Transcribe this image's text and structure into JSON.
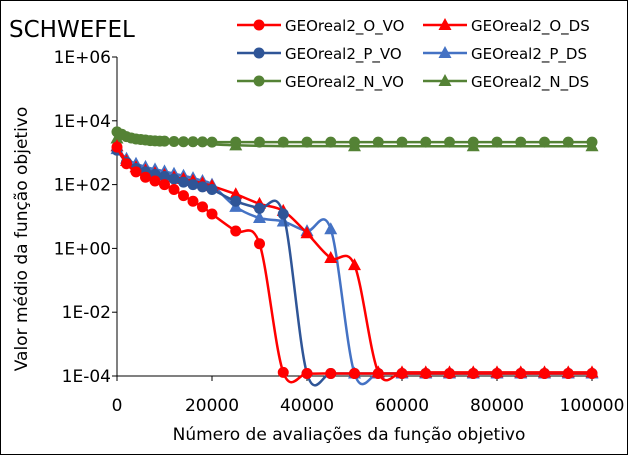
{
  "chart_data": {
    "type": "line",
    "title": "SCHWEFEL",
    "xlabel": "Número de avaliações da função objetivo",
    "ylabel": "Valor médio da função objetivo",
    "xlim": [
      0,
      100000
    ],
    "ylim": [
      0.0001,
      1000000
    ],
    "yscale": "log",
    "x_ticks": [
      0,
      20000,
      40000,
      60000,
      80000,
      100000
    ],
    "x_tick_labels": [
      "0",
      "20000",
      "40000",
      "60000",
      "80000",
      "100000"
    ],
    "y_ticks": [
      0.0001,
      0.01,
      1,
      100,
      10000,
      1000000
    ],
    "y_tick_labels": [
      "1E-04",
      "1E-02",
      "1E+00",
      "1E+02",
      "1E+04",
      "1E+06"
    ],
    "grid": false,
    "legend_position": "top-right",
    "series": [
      {
        "name": "GEOreal2_O_VO",
        "color": "#FF0000",
        "marker": "circle",
        "x": [
          0,
          2000,
          4000,
          6000,
          8000,
          10000,
          12000,
          14000,
          16000,
          18000,
          20000,
          25000,
          30000,
          35000,
          40000,
          45000,
          50000,
          55000,
          60000,
          65000,
          70000,
          75000,
          80000,
          85000,
          90000,
          95000,
          100000
        ],
        "y": [
          1500,
          450,
          250,
          170,
          130,
          100,
          70,
          45,
          30,
          20,
          12,
          3.5,
          1.4,
          0.00013,
          0.00012,
          0.00012,
          0.00012,
          0.00012,
          0.00012,
          0.00012,
          0.00012,
          0.00012,
          0.00012,
          0.00012,
          0.00012,
          0.00012,
          0.00012
        ]
      },
      {
        "name": "GEOreal2_O_DS",
        "color": "#FF0000",
        "marker": "triangle",
        "x": [
          0,
          2000,
          4000,
          6000,
          8000,
          10000,
          12000,
          14000,
          16000,
          18000,
          20000,
          25000,
          30000,
          35000,
          40000,
          45000,
          50000,
          55000,
          60000,
          65000,
          70000,
          75000,
          80000,
          85000,
          90000,
          95000,
          100000
        ],
        "y": [
          1600,
          550,
          350,
          280,
          230,
          200,
          170,
          150,
          130,
          110,
          90,
          50,
          25,
          15,
          3,
          0.5,
          0.3,
          0.00013,
          0.00013,
          0.00013,
          0.00013,
          0.00013,
          0.00013,
          0.00013,
          0.00013,
          0.00013,
          0.00013
        ]
      },
      {
        "name": "GEOreal2_P_VO",
        "color": "#2F5597",
        "marker": "circle",
        "x": [
          0,
          2000,
          4000,
          6000,
          8000,
          10000,
          12000,
          14000,
          16000,
          18000,
          20000,
          25000,
          30000,
          35000,
          40000,
          45000,
          50000,
          55000,
          60000,
          65000,
          70000,
          75000,
          80000,
          85000,
          90000,
          95000,
          100000
        ],
        "y": [
          1200,
          500,
          320,
          250,
          210,
          180,
          150,
          120,
          100,
          85,
          70,
          30,
          18,
          12,
          0.00012,
          0.00012,
          0.00012,
          0.00012,
          0.00012,
          0.00012,
          0.00012,
          0.00012,
          0.00012,
          0.00012,
          0.00012,
          0.00012,
          0.00012
        ]
      },
      {
        "name": "GEOreal2_P_DS",
        "color": "#4472C4",
        "marker": "triangle",
        "x": [
          0,
          2000,
          4000,
          6000,
          8000,
          10000,
          12000,
          14000,
          16000,
          18000,
          20000,
          25000,
          30000,
          35000,
          40000,
          45000,
          50000,
          55000,
          60000,
          65000,
          70000,
          75000,
          80000,
          85000,
          90000,
          95000,
          100000
        ],
        "y": [
          1300,
          650,
          450,
          360,
          300,
          260,
          220,
          190,
          160,
          130,
          100,
          20,
          9,
          7,
          3.5,
          4,
          0.00012,
          0.00012,
          0.00012,
          0.00012,
          0.00012,
          0.00012,
          0.00012,
          0.00012,
          0.00012,
          0.00012,
          0.00012
        ]
      },
      {
        "name": "GEOreal2_N_VO",
        "color": "#548235",
        "marker": "circle",
        "x": [
          0,
          1000,
          2000,
          3000,
          4000,
          5000,
          6000,
          7000,
          8000,
          9000,
          10000,
          12000,
          14000,
          16000,
          18000,
          20000,
          25000,
          30000,
          35000,
          40000,
          45000,
          50000,
          55000,
          60000,
          65000,
          70000,
          75000,
          80000,
          85000,
          90000,
          95000,
          100000
        ],
        "y": [
          4500,
          3800,
          3200,
          2900,
          2700,
          2600,
          2500,
          2400,
          2350,
          2300,
          2300,
          2250,
          2200,
          2200,
          2180,
          2150,
          2150,
          2150,
          2150,
          2150,
          2150,
          2150,
          2150,
          2150,
          2150,
          2150,
          2150,
          2150,
          2150,
          2150,
          2150,
          2150
        ]
      },
      {
        "name": "GEOreal2_N_DS",
        "color": "#548235",
        "marker": "triangle",
        "x": [
          0,
          25000,
          50000,
          75000,
          100000
        ],
        "y": [
          2800,
          1700,
          1600,
          1600,
          1600
        ]
      }
    ]
  }
}
